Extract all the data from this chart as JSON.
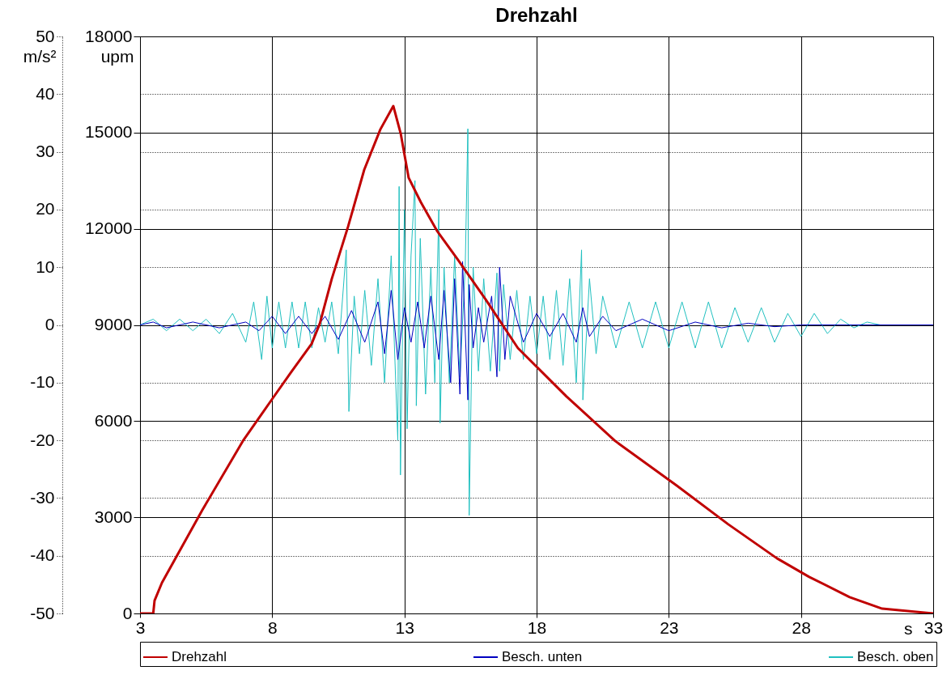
{
  "chart_data": {
    "type": "line",
    "title": "Drehzahl",
    "xlabel": "s",
    "ylabel": "upm",
    "y2label": "m/s²",
    "xlim": [
      3,
      33
    ],
    "xticks": [
      3,
      8,
      13,
      18,
      23,
      28,
      33
    ],
    "ylim": [
      0,
      18000
    ],
    "yticks": [
      0,
      3000,
      6000,
      9000,
      12000,
      15000,
      18000
    ],
    "y2lim": [
      -50,
      50
    ],
    "y2ticks": [
      -50,
      -40,
      -30,
      -20,
      -10,
      0,
      10,
      20,
      30,
      40,
      50
    ],
    "grid": true,
    "legend": "bottom",
    "marker": "none",
    "line_style": "solid",
    "series": [
      {
        "name": "Drehzahl",
        "color": "#c00000",
        "x": [
          3,
          3.5,
          3.55,
          3.83,
          5.36,
          6.89,
          8.0,
          8.72,
          9.49,
          9.8,
          10.25,
          10.87,
          11.48,
          12.09,
          12.58,
          12.86,
          13.16,
          13.62,
          14.23,
          15.0,
          16.07,
          17.29,
          19.13,
          20.97,
          23.3,
          25.25,
          27.09,
          28.31,
          29.84,
          31.07,
          33
        ],
        "values": [
          0,
          0,
          400,
          960,
          3230,
          5380,
          6690,
          7530,
          8410,
          9040,
          10430,
          12070,
          13840,
          15100,
          15830,
          14970,
          13590,
          12830,
          11940,
          11060,
          9800,
          8280,
          6770,
          5380,
          3990,
          2780,
          1720,
          1140,
          510,
          150,
          0
        ]
      },
      {
        "name": "Besch. unten",
        "color": "#0000c0",
        "axis": "y2",
        "x": [
          3,
          3.5,
          4,
          5,
          6,
          7,
          7.5,
          8,
          8.5,
          9,
          9.5,
          10,
          10.5,
          11,
          11.5,
          12,
          12.25,
          12.5,
          12.75,
          13.0,
          13.25,
          13.5,
          13.75,
          14.0,
          14.3,
          14.5,
          14.75,
          14.9,
          15.1,
          15.2,
          15.4,
          15.45,
          15.6,
          15.8,
          16.0,
          16.3,
          16.5,
          16.6,
          16.8,
          17.0,
          17.5,
          18,
          18.5,
          19,
          19.5,
          19.75,
          20,
          20.5,
          21,
          22,
          23,
          24,
          25,
          26,
          27,
          28,
          33
        ],
        "values": [
          0,
          0.5,
          -0.5,
          0.5,
          -0.5,
          0.5,
          -1,
          1.5,
          -1.5,
          1.5,
          -1.5,
          1.5,
          -2.5,
          2.5,
          -3,
          4,
          -5,
          6,
          -6,
          3,
          -3,
          4,
          -4,
          5,
          -6,
          6,
          -10,
          8,
          -12,
          11,
          -13,
          7,
          -4,
          3,
          -3,
          5,
          -9,
          10,
          -6,
          5,
          -3,
          2,
          -2,
          2,
          -3,
          3,
          -2,
          1.5,
          -1,
          1,
          -1,
          0.5,
          -0.5,
          0.3,
          -0.3,
          0,
          0
        ]
      },
      {
        "name": "Besch. oben",
        "color": "#20c0c0",
        "axis": "y2",
        "x": [
          3,
          3.5,
          4,
          4.5,
          5,
          5.5,
          6,
          6.5,
          7,
          7.3,
          7.6,
          7.8,
          8.0,
          8.25,
          8.5,
          8.75,
          9.0,
          9.25,
          9.5,
          9.75,
          10.0,
          10.25,
          10.5,
          10.8,
          10.9,
          11.1,
          11.3,
          11.5,
          11.75,
          12.0,
          12.25,
          12.5,
          12.75,
          12.8,
          12.85,
          13.0,
          13.1,
          13.25,
          13.4,
          13.45,
          13.6,
          13.8,
          14.0,
          14.15,
          14.3,
          14.35,
          14.5,
          14.7,
          14.9,
          15.1,
          15.3,
          15.4,
          15.45,
          15.6,
          15.8,
          16.0,
          16.25,
          16.5,
          16.6,
          16.75,
          17.0,
          17.25,
          17.5,
          17.75,
          18.0,
          18.25,
          18.5,
          18.75,
          19.0,
          19.25,
          19.5,
          19.7,
          19.75,
          20.0,
          20.25,
          20.5,
          21.0,
          21.5,
          22.0,
          22.5,
          23.0,
          23.5,
          24.0,
          24.5,
          25.0,
          25.5,
          26.0,
          26.5,
          27.0,
          27.5,
          28.0,
          28.5,
          29.0,
          29.5,
          30.0,
          30.5,
          31,
          33
        ],
        "values": [
          0,
          1,
          -1,
          1,
          -1,
          1,
          -1.5,
          2,
          -3,
          4,
          -6,
          5,
          -4,
          4,
          -4,
          4,
          -4,
          4,
          -4,
          3,
          -3,
          4,
          -5,
          13,
          -15,
          5,
          -5,
          6,
          -7,
          8,
          -10,
          12,
          -20,
          24,
          -26,
          20,
          -18,
          12,
          25,
          -14,
          15,
          -12,
          10,
          -10,
          20,
          -17,
          10,
          -10,
          12,
          -9,
          10,
          34,
          -33,
          10,
          -8,
          8,
          -8,
          9,
          -8,
          7,
          -6,
          6,
          -6,
          5,
          -5,
          5,
          -6,
          6,
          -7,
          8,
          -10,
          13,
          -13,
          8,
          -5,
          5,
          -4,
          4,
          -4,
          4,
          -4,
          4,
          -4,
          4,
          -4,
          3,
          -3,
          3,
          -3,
          2,
          -2,
          2,
          -1.5,
          1,
          -0.5,
          0.5,
          0,
          0
        ]
      }
    ]
  }
}
